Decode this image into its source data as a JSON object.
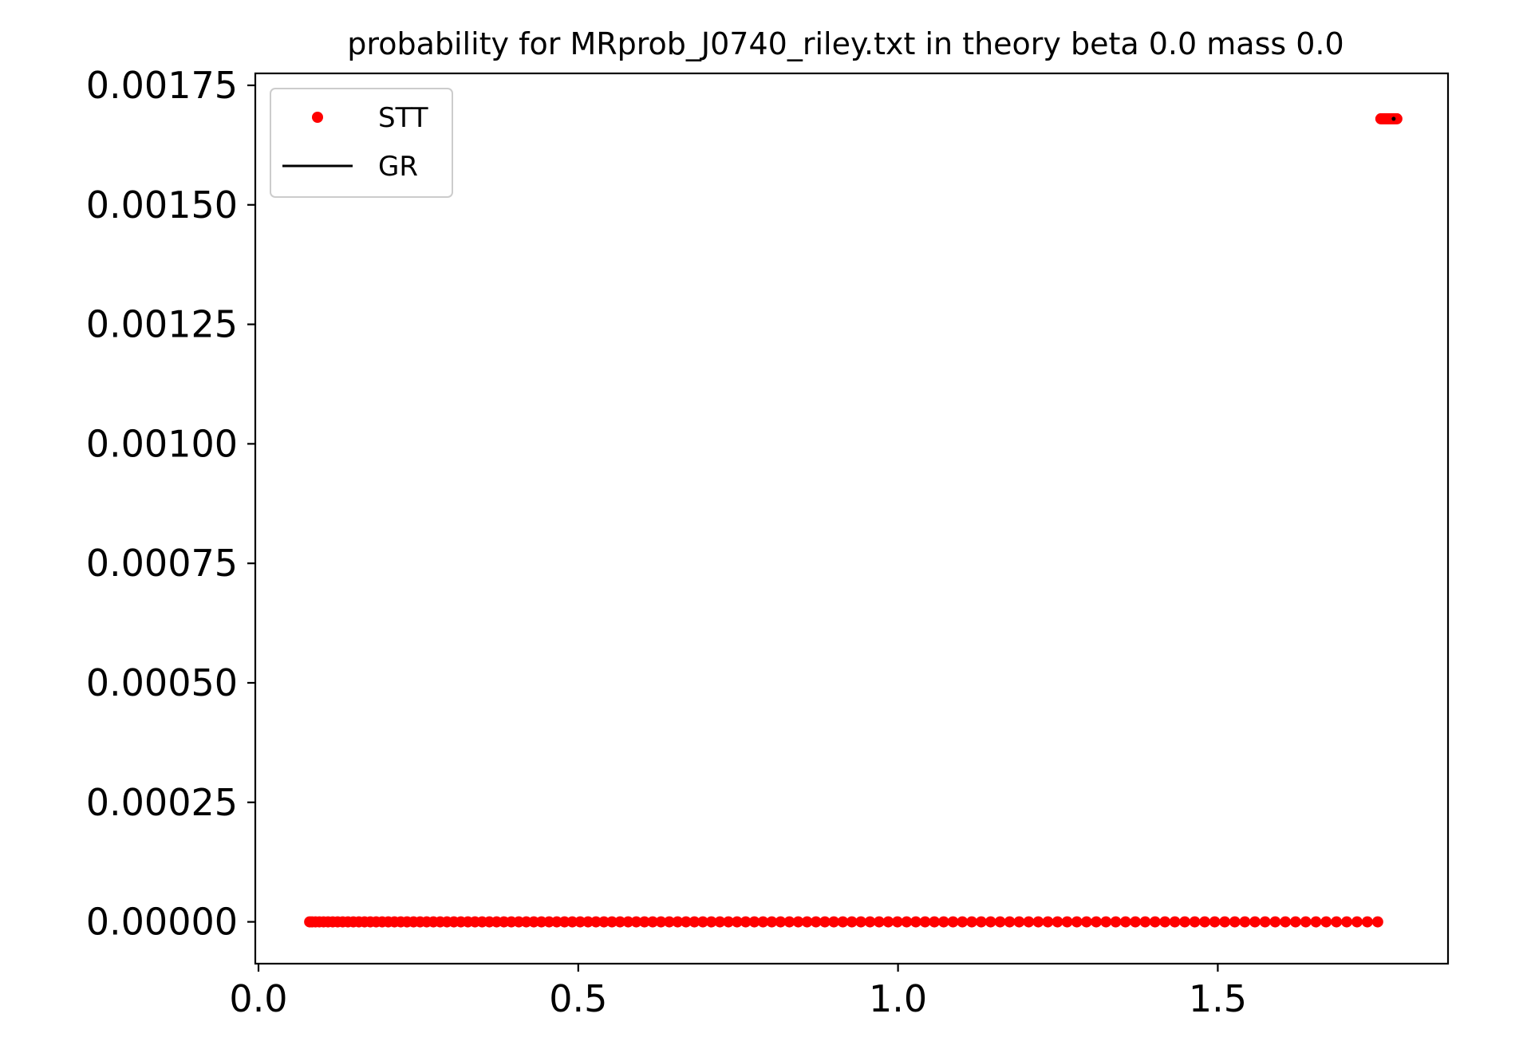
{
  "chart_data": {
    "type": "scatter",
    "title": "probability for MRprob_J0740_riley.txt in theory beta 0.0 mass 0.0",
    "xlabel": "",
    "ylabel": "",
    "xlim": [
      -0.005,
      1.86
    ],
    "ylim": [
      -8.75e-05,
      0.001775
    ],
    "x_ticks": [
      0.0,
      0.5,
      1.0,
      1.5
    ],
    "x_tick_labels": [
      "0.0",
      "0.5",
      "1.0",
      "1.5"
    ],
    "y_ticks": [
      0.0,
      0.00025,
      0.0005,
      0.00075,
      0.001,
      0.00125,
      0.0015,
      0.00175
    ],
    "y_tick_labels": [
      "0.00000",
      "0.00025",
      "0.00050",
      "0.00075",
      "0.00100",
      "0.00125",
      "0.00150",
      "0.00175"
    ],
    "grid": false,
    "legend_position": "upper-left",
    "series": [
      {
        "name": "STT",
        "marker": "dot",
        "color": "#ff0000",
        "segments": [
          {
            "x_start": 0.08,
            "x_end": 1.75,
            "y": 0.0,
            "count": 130,
            "cluster_near_start": true
          },
          {
            "x_start": 1.755,
            "x_end": 1.78,
            "y": 0.00168,
            "count": 10,
            "cluster_near_start": false
          }
        ]
      },
      {
        "name": "GR",
        "marker": "line",
        "color": "#000000",
        "points": [
          {
            "x": 1.775,
            "y": 0.00168
          }
        ]
      }
    ]
  }
}
